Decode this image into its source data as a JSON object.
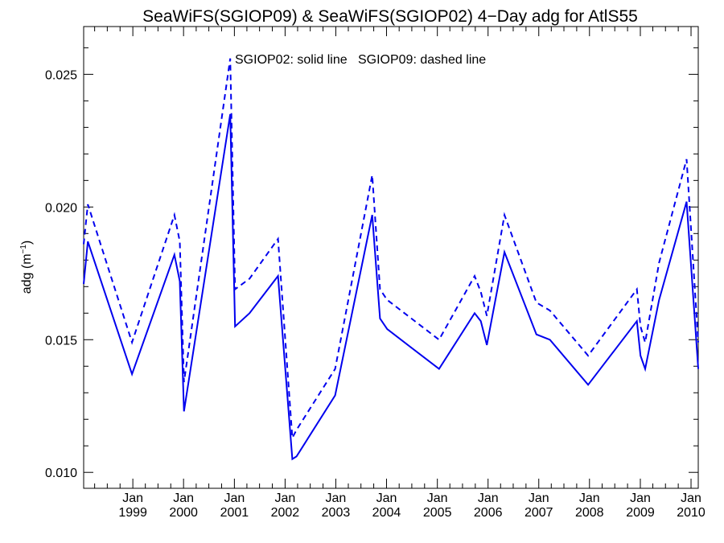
{
  "chart_data": {
    "type": "line",
    "title": "SeaWiFS(SGIOP09) & SeaWiFS(SGIOP02) 4−Day adg for AtlS55",
    "ylabel_main": "adg (m",
    "ylabel_sup": "−1",
    "ylabel_close": ")",
    "annotation": "SGIOP02: solid line   SGIOP09: dashed line",
    "x_axis": {
      "type": "date",
      "range": [
        "1998-01-12",
        "2010-02-22"
      ],
      "tick_month_labels": [
        "Jan",
        "Jan",
        "Jan",
        "Jan",
        "Jan",
        "Jan",
        "Jan",
        "Jan",
        "Jan",
        "Jan",
        "Jan",
        "Jan"
      ],
      "tick_year_labels": [
        "1999",
        "2000",
        "2001",
        "2002",
        "2003",
        "2004",
        "2005",
        "2006",
        "2007",
        "2008",
        "2009",
        "2010"
      ]
    },
    "y_axis": {
      "range": [
        0.0094,
        0.0268
      ],
      "ticks": [
        0.01,
        0.015,
        0.02,
        0.025
      ],
      "tick_labels": [
        "0.010",
        "0.015",
        "0.020",
        "0.025"
      ]
    },
    "color": "#0000ee",
    "series": [
      {
        "style": "solid",
        "points": [
          [
            "1998-01-12",
            0.0171
          ],
          [
            "1998-02-11",
            0.0187
          ],
          [
            "1998-12-26",
            0.0137
          ],
          [
            "1999-10-27",
            0.0182
          ],
          [
            "1999-12-05",
            0.0172
          ],
          [
            "2000-01-04",
            0.0123
          ],
          [
            "2000-12-02",
            0.0235
          ],
          [
            "2001-01-06",
            0.0155
          ],
          [
            "2001-04-20",
            0.016
          ],
          [
            "2001-11-11",
            0.0174
          ],
          [
            "2002-02-22",
            0.0105
          ],
          [
            "2002-03-24",
            0.0106
          ],
          [
            "2002-12-27",
            0.0129
          ],
          [
            "2003-09-20",
            0.0197
          ],
          [
            "2003-11-15",
            0.0158
          ],
          [
            "2004-01-06",
            0.0154
          ],
          [
            "2005-01-13",
            0.0139
          ],
          [
            "2005-09-26",
            0.016
          ],
          [
            "2005-11-10",
            0.0157
          ],
          [
            "2005-12-23",
            0.0148
          ],
          [
            "2006-04-29",
            0.0183
          ],
          [
            "2006-12-15",
            0.0152
          ],
          [
            "2007-03-22",
            0.015
          ],
          [
            "2007-12-22",
            0.0133
          ],
          [
            "2008-12-07",
            0.0157
          ],
          [
            "2009-01-02",
            0.0144
          ],
          [
            "2009-02-05",
            0.0139
          ],
          [
            "2009-05-16",
            0.0165
          ],
          [
            "2009-11-30",
            0.0202
          ],
          [
            "2010-02-22",
            0.0139
          ]
        ]
      },
      {
        "style": "dashed",
        "points": [
          [
            "1998-01-12",
            0.0186
          ],
          [
            "1998-02-11",
            0.0201
          ],
          [
            "1998-12-26",
            0.0149
          ],
          [
            "1999-10-27",
            0.0197
          ],
          [
            "1999-12-05",
            0.0187
          ],
          [
            "2000-01-04",
            0.0134
          ],
          [
            "2000-12-02",
            0.0256
          ],
          [
            "2001-01-06",
            0.0169
          ],
          [
            "2001-04-20",
            0.0173
          ],
          [
            "2001-11-11",
            0.0188
          ],
          [
            "2002-02-22",
            0.0113
          ],
          [
            "2002-03-24",
            0.0116
          ],
          [
            "2002-12-27",
            0.0139
          ],
          [
            "2003-09-20",
            0.0212
          ],
          [
            "2003-11-15",
            0.0169
          ],
          [
            "2004-01-06",
            0.0165
          ],
          [
            "2005-01-13",
            0.015
          ],
          [
            "2005-09-26",
            0.0174
          ],
          [
            "2005-11-10",
            0.0168
          ],
          [
            "2005-12-23",
            0.0159
          ],
          [
            "2006-04-29",
            0.0197
          ],
          [
            "2006-12-15",
            0.0164
          ],
          [
            "2007-03-22",
            0.0161
          ],
          [
            "2007-12-22",
            0.0144
          ],
          [
            "2008-12-07",
            0.0169
          ],
          [
            "2009-01-02",
            0.0155
          ],
          [
            "2009-02-05",
            0.0149
          ],
          [
            "2009-05-16",
            0.0179
          ],
          [
            "2009-11-30",
            0.0218
          ],
          [
            "2010-02-22",
            0.0149
          ]
        ]
      }
    ]
  }
}
